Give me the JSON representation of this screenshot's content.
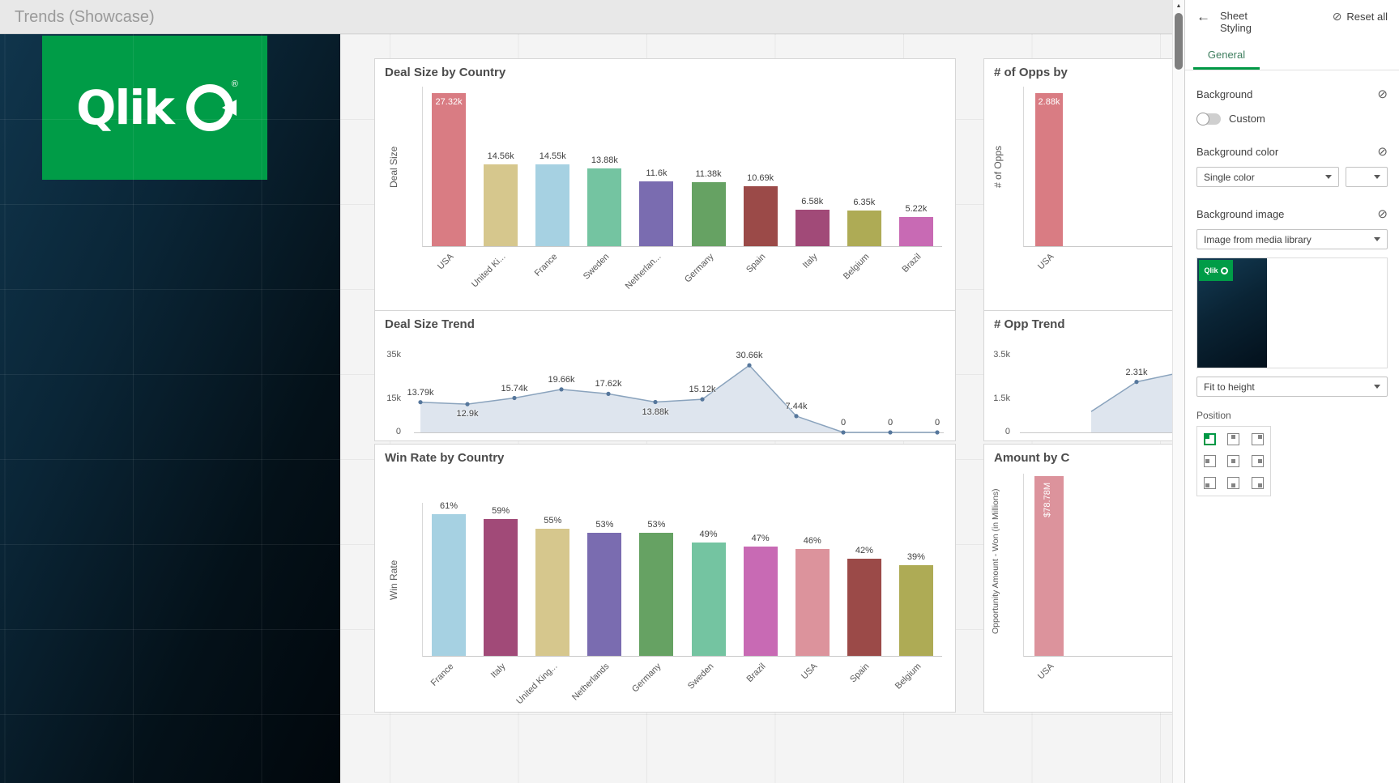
{
  "window": {
    "title": "Trends (Showcase)"
  },
  "logo": {
    "wordmark": "Qlik",
    "registered": "®"
  },
  "icons": {
    "back": "←",
    "reset": "⊘",
    "clear": "⊘",
    "scroll_up": "▲"
  },
  "panel": {
    "title": "Sheet Styling",
    "reset_all": "Reset all",
    "tab_general": "General",
    "background": {
      "label": "Background",
      "custom_label": "Custom",
      "custom_enabled": false
    },
    "background_color": {
      "label": "Background color",
      "mode": "Single color"
    },
    "background_image": {
      "label": "Background image",
      "source": "Image from media library",
      "fit": "Fit to height",
      "position_label": "Position",
      "selected_position": "top-left",
      "preview_logo": "Qlik"
    }
  },
  "accent_colors": {
    "qlik_green": "#009845",
    "logo_green": "#009c47",
    "canvas_dark": "#0a2536"
  },
  "chart_data": [
    {
      "id": "deal-size-by-country",
      "type": "bar",
      "title": "Deal Size by Country",
      "ylabel": "Deal Size",
      "categories": [
        "USA",
        "United Ki...",
        "France",
        "Sweden",
        "Netherlan...",
        "Germany",
        "Spain",
        "Italy",
        "Belgium",
        "Brazil"
      ],
      "values": [
        27320,
        14560,
        14550,
        13880,
        11600,
        11380,
        10690,
        6580,
        6350,
        5220
      ],
      "value_labels": [
        "27.32k",
        "14.56k",
        "14.55k",
        "13.88k",
        "11.6k",
        "11.38k",
        "10.69k",
        "6.58k",
        "6.35k",
        "5.22k"
      ],
      "colors": [
        "#d97c83",
        "#d6c78d",
        "#a6d1e2",
        "#74c4a1",
        "#7a6cb0",
        "#66a263",
        "#9b4a48",
        "#a14a78",
        "#aeab55",
        "#c86ab4"
      ],
      "ylim": [
        0,
        28500
      ]
    },
    {
      "id": "num-opps-by",
      "type": "bar",
      "title": "# of Opps by",
      "ylabel": "# of Opps",
      "categories": [
        "USA"
      ],
      "values": [
        2880
      ],
      "value_labels": [
        "2.88k"
      ],
      "colors": [
        "#d97c83"
      ],
      "ylim": [
        0,
        3000
      ]
    },
    {
      "id": "deal-size-trend",
      "type": "line",
      "title": "Deal Size Trend",
      "values": [
        13790,
        12900,
        15740,
        19660,
        17620,
        13880,
        15120,
        30660,
        7440,
        0,
        0,
        0
      ],
      "value_labels": [
        "13.79k",
        "12.9k",
        "15.74k",
        "19.66k",
        "17.62k",
        "13.88k",
        "15.12k",
        "30.66k",
        "7.44k",
        "0",
        "0",
        "0"
      ],
      "ytick_labels": [
        "35k",
        "15k",
        "0"
      ],
      "ytick_values": [
        35000,
        15000,
        0
      ],
      "ylim": [
        0,
        37000
      ]
    },
    {
      "id": "num-opp-trend",
      "type": "line",
      "title": "# Opp Trend",
      "values": [
        950,
        2310,
        2750
      ],
      "value_labels": [
        "",
        "2.31k",
        ""
      ],
      "ytick_labels": [
        "3.5k",
        "1.5k",
        "0"
      ],
      "ytick_values": [
        3500,
        1500,
        0
      ],
      "ylim": [
        0,
        3700
      ]
    },
    {
      "id": "win-rate-by-country",
      "type": "bar",
      "title": "Win Rate by Country",
      "ylabel": "Win Rate",
      "categories": [
        "France",
        "Italy",
        "United King...",
        "Netherlands",
        "Germany",
        "Sweden",
        "Brazil",
        "USA",
        "Spain",
        "Belgium"
      ],
      "values": [
        61,
        59,
        55,
        53,
        53,
        49,
        47,
        46,
        42,
        39
      ],
      "value_labels": [
        "61%",
        "59%",
        "55%",
        "53%",
        "53%",
        "49%",
        "47%",
        "46%",
        "42%",
        "39%"
      ],
      "colors": [
        "#a6d1e2",
        "#a14a78",
        "#d6c78d",
        "#7a6cb0",
        "#66a263",
        "#74c4a1",
        "#c86ab4",
        "#dc939c",
        "#9b4a48",
        "#aeab55"
      ],
      "ylim": [
        0,
        66
      ]
    },
    {
      "id": "amount-by-country",
      "type": "bar",
      "title": "Amount by C",
      "ylabel": "Opportunity Amount - Won (in Millions)",
      "categories": [
        "USA"
      ],
      "values": [
        78.78
      ],
      "value_labels": [
        "$78.78M"
      ],
      "colors": [
        "#dc939c"
      ],
      "ylim": [
        0,
        80
      ]
    }
  ]
}
